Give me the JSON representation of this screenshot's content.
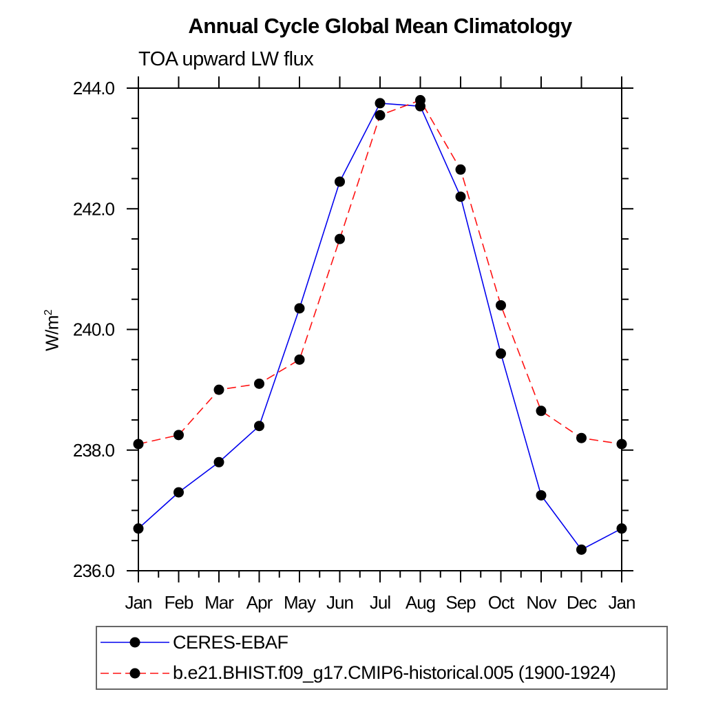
{
  "title": "Annual Cycle Global Mean Climatology",
  "subtitle": "TOA upward LW flux",
  "y_axis": {
    "label_base": "W/m",
    "label_sup": "2"
  },
  "chart_data": {
    "type": "line",
    "title": "Annual Cycle Global Mean Climatology",
    "subtitle": "TOA upward LW flux",
    "ylabel": "W/m^2",
    "x_categories": [
      "Jan",
      "Feb",
      "Mar",
      "Apr",
      "May",
      "Jun",
      "Jul",
      "Aug",
      "Sep",
      "Oct",
      "Nov",
      "Dec",
      "Jan"
    ],
    "ylim": [
      236.0,
      244.0
    ],
    "y_major_ticks": [
      236.0,
      238.0,
      240.0,
      242.0,
      244.0
    ],
    "y_minor_step": 0.5,
    "y_tick_labels": [
      "236.0",
      "238.0",
      "240.0",
      "242.0",
      "244.0"
    ],
    "grid": false,
    "frame": "box-with-outward-ticks",
    "legend_position": "bottom-left",
    "background_color": "#ffffff",
    "text_color": "#000000",
    "series": [
      {
        "name": "CERES-EBAF",
        "color": "#0000ee",
        "line_style": "solid",
        "marker": "filled-circle",
        "marker_color": "#000000",
        "values": [
          236.7,
          237.3,
          237.8,
          238.4,
          240.35,
          242.45,
          243.75,
          243.7,
          242.2,
          239.6,
          237.25,
          236.35,
          236.7
        ]
      },
      {
        "name": "b.e21.BHIST.f09_g17.CMIP6-historical.005 (1900-1924)",
        "color": "#ff1111",
        "line_style": "dashed",
        "marker": "filled-circle",
        "marker_color": "#000000",
        "values": [
          238.1,
          238.25,
          239.0,
          239.1,
          239.5,
          241.5,
          243.55,
          243.8,
          242.65,
          240.4,
          238.65,
          238.2,
          238.1
        ]
      }
    ]
  }
}
